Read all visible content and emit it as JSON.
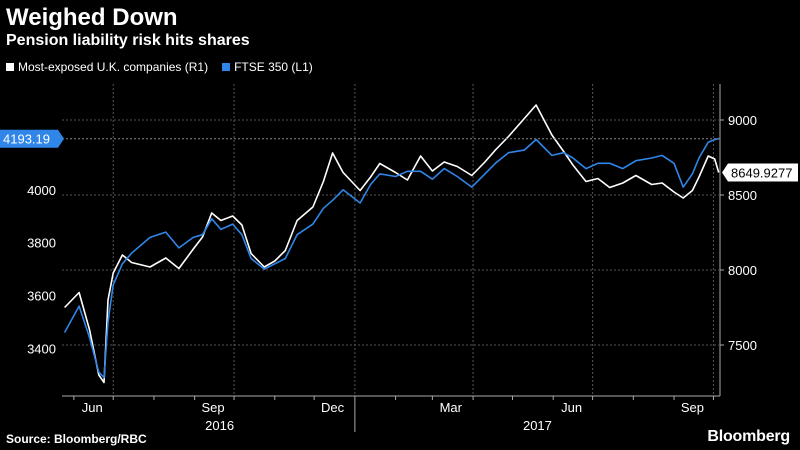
{
  "title": "Weighed Down",
  "subtitle": "Pension liability risk hits shares",
  "source": "Source: Bloomberg/RBC",
  "brand": "Bloomberg",
  "colors": {
    "background": "#000000",
    "ftse": "#2f86e8",
    "exposed": "#ffffff",
    "grid": "#555555"
  },
  "chart_data": {
    "type": "line",
    "title": "Weighed Down",
    "subtitle": "Pension liability risk hits shares",
    "legend_placement": "top-left",
    "grid": true,
    "x_month_ticks": [
      "Jun",
      "Sep",
      "Dec",
      "Mar",
      "Jun",
      "Sep"
    ],
    "x_year_labels": [
      "2016",
      "2017"
    ],
    "x_range": [
      "2016-05-23",
      "2017-10-06"
    ],
    "y_left": {
      "label": "",
      "ticks": [
        3400,
        3600,
        3800,
        4000
      ],
      "range": [
        3220,
        4400
      ]
    },
    "y_right": {
      "label": "",
      "ticks": [
        7500,
        8000,
        8500,
        9000
      ],
      "range": [
        7160,
        9240
      ]
    },
    "last_value_labels": {
      "ftse": "4193.19",
      "exposed": "8649.9277"
    },
    "series": [
      {
        "name": "FTSE 350 (L1)",
        "axis": "left",
        "color": "#2f86e8",
        "x": [
          "2016-05-25",
          "2016-06-05",
          "2016-06-13",
          "2016-06-20",
          "2016-06-24",
          "2016-06-27",
          "2016-07-01",
          "2016-07-08",
          "2016-07-15",
          "2016-07-29",
          "2016-08-10",
          "2016-08-20",
          "2016-08-31",
          "2016-09-07",
          "2016-09-14",
          "2016-09-21",
          "2016-09-30",
          "2016-10-07",
          "2016-10-14",
          "2016-10-24",
          "2016-11-01",
          "2016-11-09",
          "2016-11-18",
          "2016-11-30",
          "2016-12-08",
          "2016-12-15",
          "2016-12-23",
          "2017-01-05",
          "2017-01-13",
          "2017-01-20",
          "2017-02-01",
          "2017-02-10",
          "2017-02-20",
          "2017-03-01",
          "2017-03-10",
          "2017-03-20",
          "2017-03-31",
          "2017-04-10",
          "2017-04-18",
          "2017-04-28",
          "2017-05-10",
          "2017-05-19",
          "2017-05-31",
          "2017-06-09",
          "2017-06-16",
          "2017-06-26",
          "2017-07-05",
          "2017-07-14",
          "2017-07-24",
          "2017-08-03",
          "2017-08-15",
          "2017-08-23",
          "2017-09-01",
          "2017-09-08",
          "2017-09-15",
          "2017-09-20",
          "2017-09-27",
          "2017-10-02",
          "2017-10-05"
        ],
        "y": [
          3460,
          3560,
          3440,
          3310,
          3290,
          3500,
          3640,
          3720,
          3760,
          3820,
          3840,
          3780,
          3820,
          3830,
          3890,
          3850,
          3870,
          3830,
          3740,
          3700,
          3720,
          3740,
          3830,
          3870,
          3930,
          3960,
          4000,
          3950,
          4020,
          4060,
          4050,
          4070,
          4070,
          4040,
          4080,
          4050,
          4010,
          4060,
          4100,
          4140,
          4150,
          4190,
          4130,
          4140,
          4120,
          4080,
          4100,
          4100,
          4080,
          4110,
          4120,
          4130,
          4100,
          4010,
          4060,
          4120,
          4180,
          4190,
          4193
        ]
      },
      {
        "name": "Most-exposed U.K. companies (R1)",
        "axis": "right",
        "color": "#ffffff",
        "x": [
          "2016-05-25",
          "2016-06-05",
          "2016-06-13",
          "2016-06-20",
          "2016-06-24",
          "2016-06-27",
          "2016-07-01",
          "2016-07-08",
          "2016-07-15",
          "2016-07-29",
          "2016-08-10",
          "2016-08-20",
          "2016-08-31",
          "2016-09-07",
          "2016-09-14",
          "2016-09-21",
          "2016-09-30",
          "2016-10-07",
          "2016-10-14",
          "2016-10-24",
          "2016-11-01",
          "2016-11-09",
          "2016-11-18",
          "2016-11-30",
          "2016-12-08",
          "2016-12-15",
          "2016-12-23",
          "2017-01-05",
          "2017-01-13",
          "2017-01-20",
          "2017-02-01",
          "2017-02-10",
          "2017-02-20",
          "2017-03-01",
          "2017-03-10",
          "2017-03-20",
          "2017-03-31",
          "2017-04-10",
          "2017-04-18",
          "2017-04-28",
          "2017-05-10",
          "2017-05-19",
          "2017-05-31",
          "2017-06-09",
          "2017-06-16",
          "2017-06-26",
          "2017-07-05",
          "2017-07-14",
          "2017-07-24",
          "2017-08-03",
          "2017-08-15",
          "2017-08-23",
          "2017-09-01",
          "2017-09-08",
          "2017-09-15",
          "2017-09-20",
          "2017-09-27",
          "2017-10-02",
          "2017-10-05"
        ],
        "y": [
          7750,
          7850,
          7600,
          7300,
          7250,
          7800,
          7980,
          8100,
          8050,
          8020,
          8080,
          8010,
          8140,
          8220,
          8380,
          8330,
          8360,
          8300,
          8110,
          8020,
          8060,
          8130,
          8330,
          8420,
          8590,
          8780,
          8650,
          8530,
          8620,
          8710,
          8650,
          8600,
          8760,
          8660,
          8720,
          8690,
          8630,
          8720,
          8800,
          8890,
          9010,
          9100,
          8900,
          8790,
          8700,
          8590,
          8610,
          8550,
          8580,
          8630,
          8570,
          8580,
          8520,
          8480,
          8530,
          8620,
          8760,
          8740,
          8650
        ]
      }
    ]
  }
}
